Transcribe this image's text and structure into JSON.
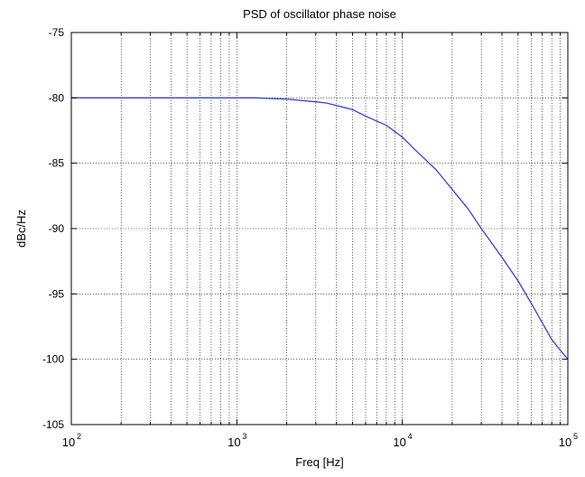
{
  "chart_data": {
    "type": "line",
    "title": "PSD of oscillator phase noise",
    "xlabel": "Freq [Hz]",
    "ylabel": "dBc/Hz",
    "xscale": "log",
    "xlim": [
      100,
      100000
    ],
    "ylim": [
      -105,
      -75
    ],
    "grid": true,
    "x_ticks": [
      {
        "value": 100,
        "base": "10",
        "exp": "2"
      },
      {
        "value": 1000,
        "base": "10",
        "exp": "3"
      },
      {
        "value": 10000,
        "base": "10",
        "exp": "4"
      },
      {
        "value": 100000,
        "base": "10",
        "exp": "5"
      }
    ],
    "y_ticks": [
      {
        "value": -75,
        "label": "-75"
      },
      {
        "value": -80,
        "label": "-80"
      },
      {
        "value": -85,
        "label": "-85"
      },
      {
        "value": -90,
        "label": "-90"
      },
      {
        "value": -95,
        "label": "-95"
      },
      {
        "value": -100,
        "label": "-100"
      },
      {
        "value": -105,
        "label": "-105"
      }
    ],
    "series": [
      {
        "color": "#3b3bdc",
        "x": [
          100,
          1000,
          1300,
          2000,
          3000,
          3500,
          5000,
          6000,
          8000,
          10000,
          12000,
          16000,
          20000,
          25000,
          30000,
          40000,
          50000,
          60000,
          70000,
          80000,
          90000,
          100000
        ],
        "y": [
          -80,
          -80,
          -80,
          -80.1,
          -80.3,
          -80.4,
          -80.9,
          -81.4,
          -82.1,
          -83.0,
          -84.0,
          -85.5,
          -87.0,
          -88.5,
          -90.0,
          -92.2,
          -94.0,
          -95.7,
          -97.2,
          -98.5,
          -99.3,
          -100.0
        ]
      }
    ]
  }
}
